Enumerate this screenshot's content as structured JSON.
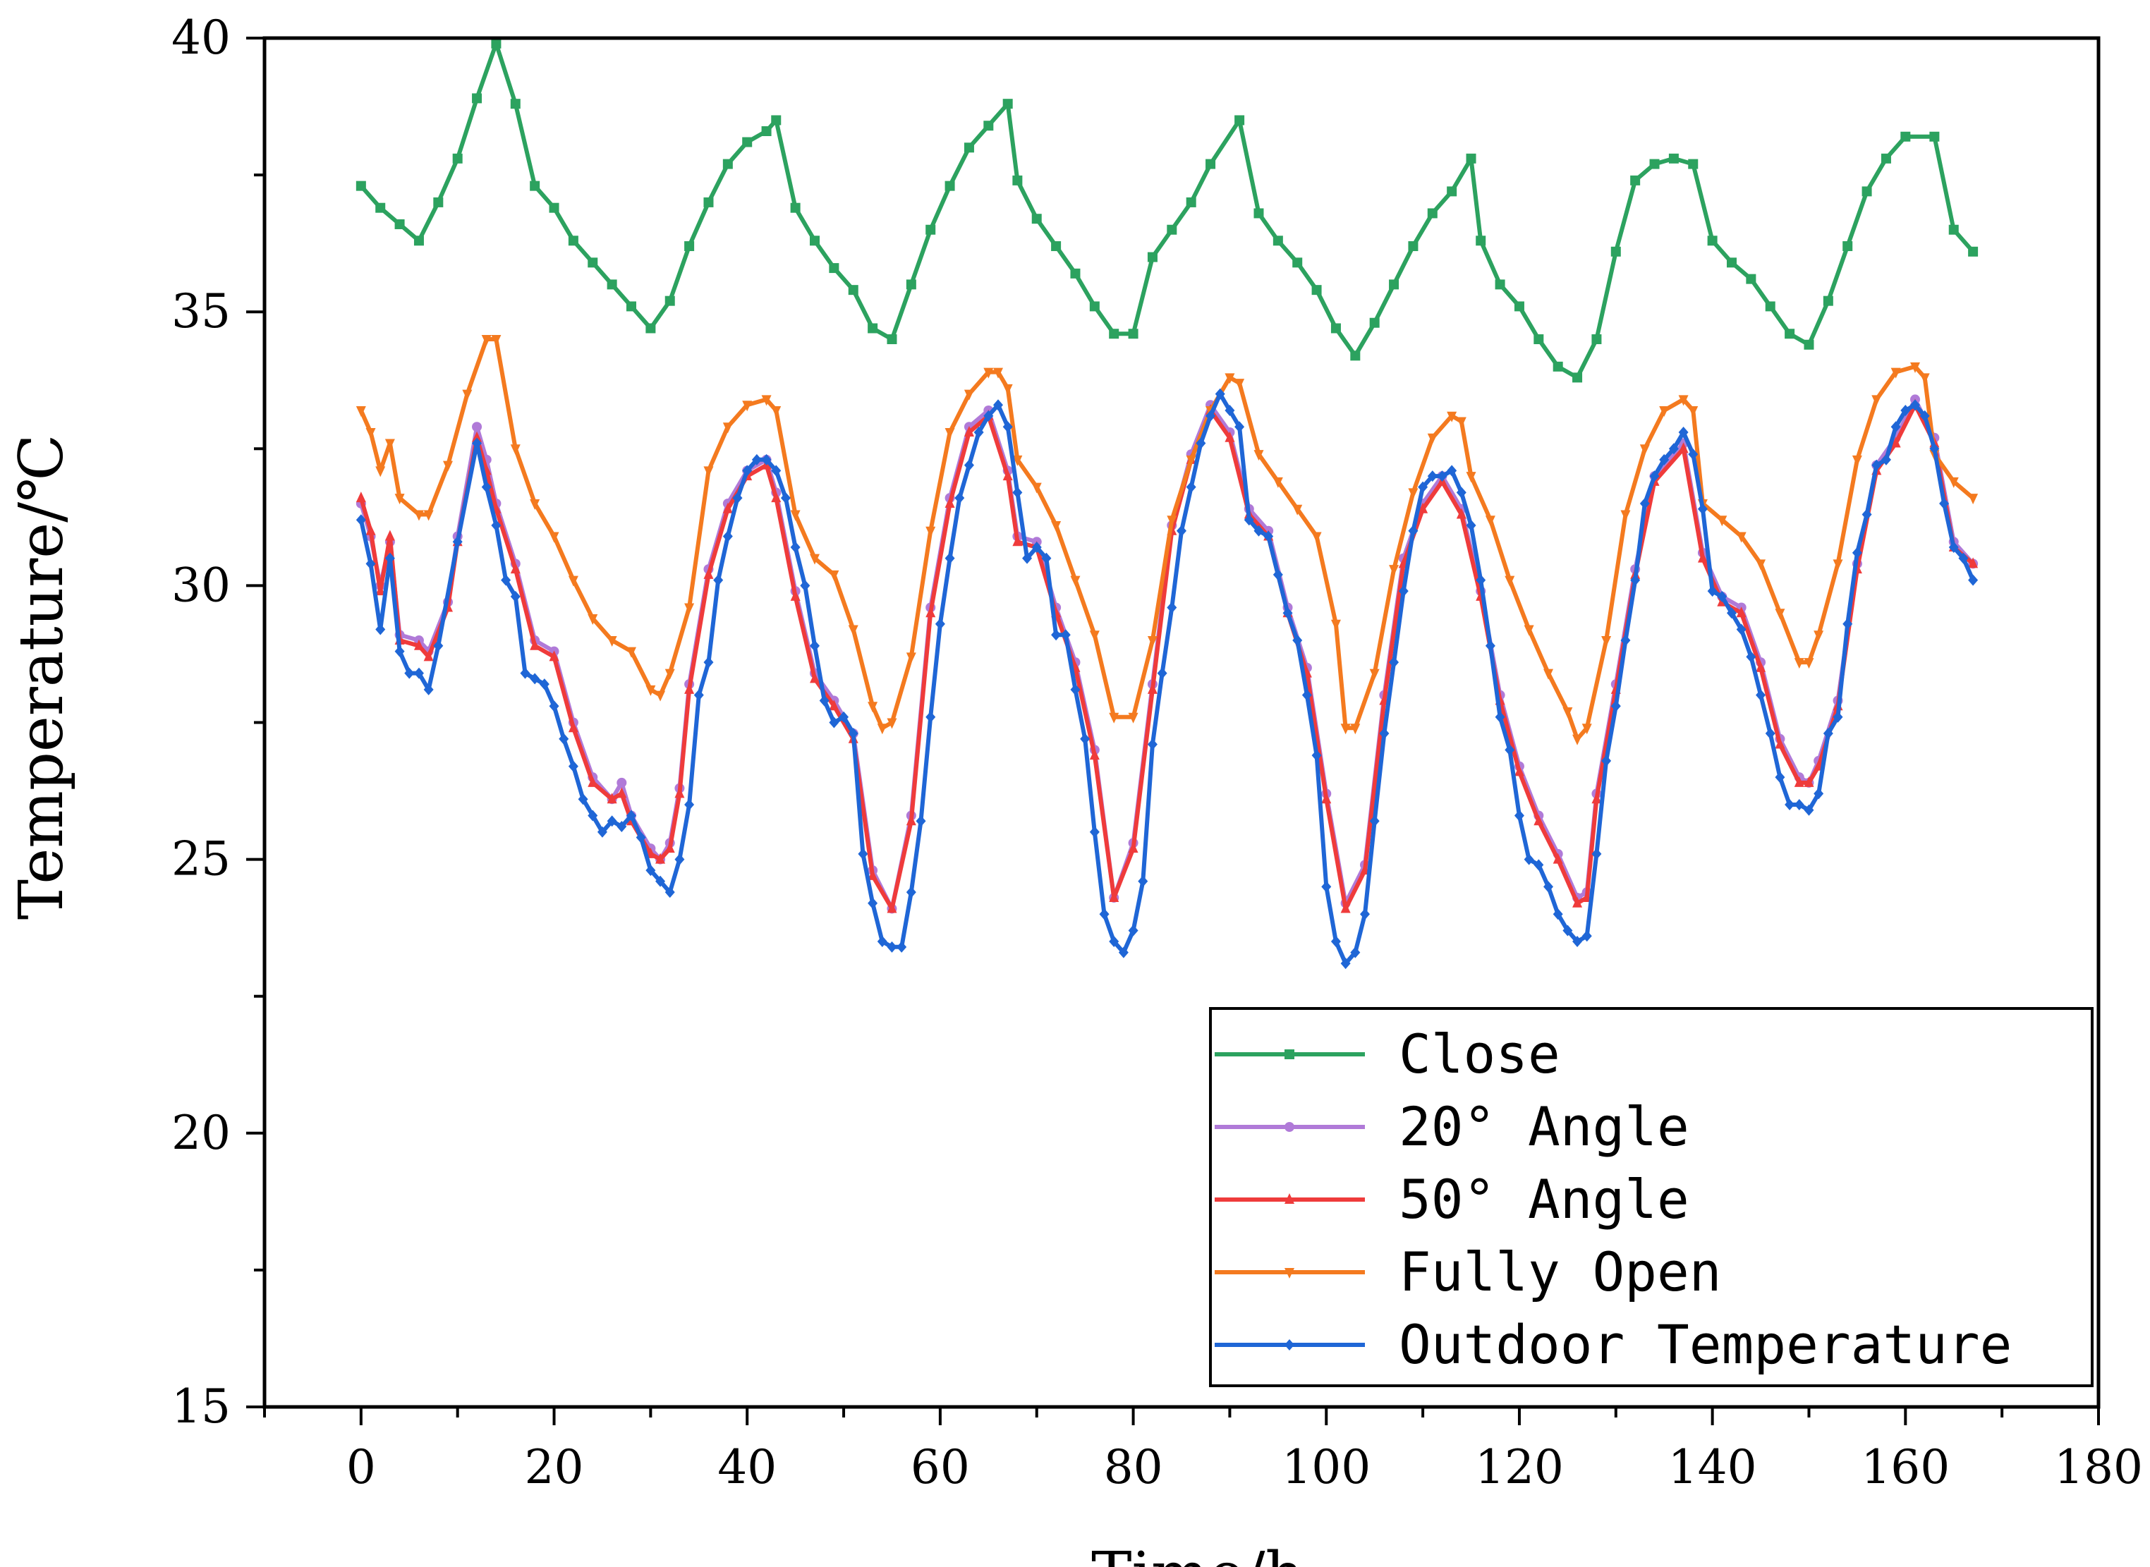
{
  "chart_data": {
    "type": "line",
    "title": "",
    "xlabel": "Time/h",
    "ylabel": "Temperature/℃",
    "xlim": [
      -10,
      180
    ],
    "ylim": [
      15,
      40
    ],
    "xticks": [
      0,
      20,
      40,
      60,
      80,
      100,
      120,
      140,
      160,
      180
    ],
    "yticks": [
      15,
      20,
      25,
      30,
      35,
      40
    ],
    "xtick_labels": [
      "0",
      "20",
      "40",
      "60",
      "80",
      "100",
      "120",
      "140",
      "160",
      "180"
    ],
    "ytick_labels": [
      "15",
      "20",
      "25",
      "30",
      "35",
      "40"
    ],
    "legend_position": "bottom-right",
    "grid": false,
    "series": [
      {
        "name": "Close",
        "color": "#2ca25f",
        "marker": "square",
        "x": [
          0,
          2,
          4,
          6,
          8,
          10,
          12,
          14,
          16,
          18,
          20,
          22,
          24,
          26,
          28,
          30,
          32,
          34,
          36,
          38,
          40,
          42,
          43,
          45,
          47,
          49,
          51,
          53,
          55,
          57,
          59,
          61,
          63,
          65,
          67,
          68,
          70,
          72,
          74,
          76,
          78,
          80,
          82,
          84,
          86,
          88,
          91,
          93,
          95,
          97,
          99,
          101,
          103,
          105,
          107,
          109,
          111,
          113,
          115,
          116,
          118,
          120,
          122,
          124,
          126,
          128,
          130,
          132,
          134,
          136,
          138,
          140,
          142,
          144,
          146,
          148,
          150,
          152,
          154,
          156,
          158,
          160,
          163,
          165,
          167
        ],
        "y": [
          37.3,
          36.9,
          36.6,
          36.3,
          37.0,
          37.8,
          38.9,
          39.9,
          38.8,
          37.3,
          36.9,
          36.3,
          35.9,
          35.5,
          35.1,
          34.7,
          35.2,
          36.2,
          37.0,
          37.7,
          38.1,
          38.3,
          38.5,
          36.9,
          36.3,
          35.8,
          35.4,
          34.7,
          34.5,
          35.5,
          36.5,
          37.3,
          38.0,
          38.4,
          38.8,
          37.4,
          36.7,
          36.2,
          35.7,
          35.1,
          34.6,
          34.6,
          36.0,
          36.5,
          37.0,
          37.7,
          38.5,
          36.8,
          36.3,
          35.9,
          35.4,
          34.7,
          34.2,
          34.8,
          35.5,
          36.2,
          36.8,
          37.2,
          37.8,
          36.3,
          35.5,
          35.1,
          34.5,
          34.0,
          33.8,
          34.5,
          36.1,
          37.4,
          37.7,
          37.8,
          37.7,
          36.3,
          35.9,
          35.6,
          35.1,
          34.6,
          34.4,
          35.2,
          36.2,
          37.2,
          37.8,
          38.2,
          38.2,
          36.5,
          36.1
        ]
      },
      {
        "name": "20° Angle",
        "color": "#b07ad8",
        "marker": "circle",
        "x": [
          0,
          1,
          2,
          3,
          4,
          6,
          7,
          9,
          10,
          12,
          13,
          14,
          16,
          18,
          20,
          22,
          24,
          26,
          27,
          28,
          30,
          31,
          32,
          33,
          34,
          36,
          38,
          40,
          42,
          43,
          45,
          47,
          49,
          51,
          53,
          55,
          57,
          59,
          61,
          63,
          65,
          67,
          68,
          70,
          72,
          74,
          76,
          78,
          80,
          82,
          84,
          86,
          88,
          90,
          92,
          94,
          96,
          98,
          100,
          102,
          104,
          106,
          108,
          110,
          112,
          114,
          116,
          118,
          120,
          122,
          124,
          126,
          127,
          128,
          130,
          132,
          134,
          137,
          139,
          141,
          143,
          145,
          147,
          149,
          150,
          151,
          153,
          155,
          157,
          159,
          161,
          163,
          165,
          167
        ],
        "y": [
          31.5,
          30.9,
          30.0,
          30.8,
          29.1,
          29.0,
          28.8,
          29.7,
          30.9,
          32.9,
          32.3,
          31.5,
          30.4,
          29.0,
          28.8,
          27.5,
          26.5,
          26.1,
          26.4,
          25.8,
          25.2,
          25.0,
          25.3,
          26.3,
          28.2,
          30.3,
          31.5,
          32.1,
          32.3,
          31.7,
          29.9,
          28.4,
          27.9,
          27.3,
          24.8,
          24.1,
          25.8,
          29.6,
          31.6,
          32.9,
          33.2,
          32.1,
          30.9,
          30.8,
          29.6,
          28.6,
          27.0,
          24.3,
          25.3,
          28.2,
          31.1,
          32.4,
          33.3,
          32.8,
          31.4,
          31.0,
          29.6,
          28.5,
          26.2,
          24.2,
          24.9,
          28.0,
          30.5,
          31.5,
          32.0,
          31.4,
          29.9,
          28.0,
          26.7,
          25.8,
          25.1,
          24.3,
          24.4,
          26.2,
          28.2,
          30.3,
          32.0,
          32.6,
          30.6,
          29.8,
          29.6,
          28.6,
          27.2,
          26.5,
          26.4,
          26.8,
          27.9,
          30.4,
          32.2,
          32.7,
          33.4,
          32.7,
          30.8,
          30.4
        ]
      },
      {
        "name": "50° Angle",
        "color": "#ef3b3b",
        "marker": "triangle-up",
        "x": [
          0,
          1,
          2,
          3,
          4,
          6,
          7,
          9,
          10,
          12,
          13,
          14,
          16,
          18,
          20,
          22,
          24,
          26,
          27,
          28,
          30,
          31,
          32,
          33,
          34,
          36,
          38,
          40,
          42,
          43,
          45,
          47,
          49,
          51,
          53,
          55,
          57,
          59,
          61,
          63,
          65,
          67,
          68,
          70,
          72,
          74,
          76,
          78,
          80,
          82,
          84,
          86,
          88,
          90,
          92,
          94,
          96,
          98,
          100,
          102,
          104,
          106,
          108,
          110,
          112,
          114,
          116,
          118,
          120,
          122,
          124,
          126,
          127,
          128,
          130,
          132,
          134,
          137,
          139,
          141,
          143,
          145,
          147,
          149,
          150,
          151,
          153,
          155,
          157,
          159,
          161,
          163,
          165,
          167
        ],
        "y": [
          31.6,
          31.0,
          29.9,
          30.9,
          29.0,
          28.9,
          28.7,
          29.6,
          30.8,
          32.7,
          32.1,
          31.4,
          30.3,
          28.9,
          28.7,
          27.4,
          26.4,
          26.1,
          26.2,
          25.7,
          25.1,
          25.0,
          25.2,
          26.2,
          28.1,
          30.2,
          31.4,
          32.0,
          32.2,
          31.6,
          29.8,
          28.3,
          27.8,
          27.2,
          24.7,
          24.1,
          25.7,
          29.5,
          31.5,
          32.8,
          33.1,
          32.0,
          30.8,
          30.7,
          29.5,
          28.5,
          26.9,
          24.3,
          25.2,
          28.1,
          31.0,
          32.3,
          33.2,
          32.7,
          31.3,
          30.9,
          29.5,
          28.4,
          26.1,
          24.1,
          24.8,
          27.9,
          30.4,
          31.4,
          31.9,
          31.3,
          29.8,
          27.9,
          26.6,
          25.7,
          25.0,
          24.2,
          24.3,
          26.1,
          28.1,
          30.2,
          31.9,
          32.5,
          30.5,
          29.7,
          29.5,
          28.5,
          27.1,
          26.4,
          26.4,
          26.7,
          27.8,
          30.3,
          32.1,
          32.6,
          33.3,
          32.6,
          30.7,
          30.4
        ]
      },
      {
        "name": "Fully Open",
        "color": "#f47a1f",
        "marker": "triangle-down",
        "x": [
          0,
          1,
          2,
          3,
          4,
          6,
          7,
          9,
          11,
          13,
          14,
          16,
          18,
          20,
          22,
          24,
          26,
          28,
          30,
          31,
          32,
          34,
          36,
          38,
          40,
          42,
          43,
          45,
          47,
          49,
          51,
          53,
          54,
          55,
          57,
          59,
          61,
          63,
          65,
          66,
          67,
          68,
          70,
          72,
          74,
          76,
          78,
          80,
          82,
          84,
          86,
          88,
          90,
          91,
          93,
          95,
          97,
          99,
          101,
          102,
          103,
          105,
          107,
          109,
          111,
          113,
          114,
          115,
          117,
          119,
          121,
          123,
          125,
          126,
          127,
          129,
          131,
          133,
          135,
          137,
          138,
          139,
          141,
          143,
          145,
          147,
          149,
          150,
          151,
          153,
          155,
          157,
          159,
          161,
          162,
          163,
          165,
          167
        ],
        "y": [
          33.2,
          32.8,
          32.1,
          32.6,
          31.6,
          31.3,
          31.3,
          32.2,
          33.5,
          34.5,
          34.5,
          32.5,
          31.5,
          30.9,
          30.1,
          29.4,
          29.0,
          28.8,
          28.1,
          28.0,
          28.4,
          29.6,
          32.1,
          32.9,
          33.3,
          33.4,
          33.2,
          31.3,
          30.5,
          30.2,
          29.2,
          27.8,
          27.4,
          27.5,
          28.7,
          31.0,
          32.8,
          33.5,
          33.9,
          33.9,
          33.6,
          32.3,
          31.8,
          31.1,
          30.1,
          29.1,
          27.6,
          27.6,
          29.0,
          31.2,
          32.3,
          33.2,
          33.8,
          33.7,
          32.4,
          31.9,
          31.4,
          30.9,
          29.3,
          27.4,
          27.4,
          28.4,
          30.3,
          31.7,
          32.7,
          33.1,
          33.0,
          32.0,
          31.2,
          30.1,
          29.2,
          28.4,
          27.7,
          27.2,
          27.4,
          29.0,
          31.3,
          32.5,
          33.2,
          33.4,
          33.2,
          31.5,
          31.2,
          30.9,
          30.4,
          29.5,
          28.6,
          28.6,
          29.1,
          30.4,
          32.3,
          33.4,
          33.9,
          34.0,
          33.8,
          32.4,
          31.9,
          31.6
        ]
      },
      {
        "name": "Outdoor Temperature",
        "color": "#1f66d6",
        "marker": "diamond",
        "x": [
          0,
          1,
          2,
          3,
          4,
          5,
          6,
          7,
          8,
          10,
          12,
          13,
          14,
          15,
          16,
          17,
          18,
          19,
          20,
          21,
          22,
          23,
          24,
          25,
          26,
          27,
          28,
          29,
          30,
          31,
          32,
          33,
          34,
          35,
          36,
          37,
          38,
          39,
          40,
          41,
          42,
          43,
          44,
          45,
          46,
          47,
          48,
          49,
          50,
          51,
          52,
          53,
          54,
          55,
          56,
          57,
          58,
          59,
          60,
          61,
          62,
          63,
          64,
          65,
          66,
          67,
          68,
          69,
          70,
          71,
          72,
          73,
          74,
          75,
          76,
          77,
          78,
          79,
          80,
          81,
          82,
          83,
          84,
          85,
          86,
          87,
          88,
          89,
          90,
          91,
          92,
          93,
          94,
          95,
          96,
          97,
          98,
          99,
          100,
          101,
          102,
          103,
          104,
          105,
          106,
          107,
          108,
          109,
          110,
          111,
          112,
          113,
          114,
          115,
          116,
          117,
          118,
          119,
          120,
          121,
          122,
          123,
          124,
          125,
          126,
          127,
          128,
          129,
          130,
          131,
          132,
          133,
          134,
          135,
          136,
          137,
          138,
          139,
          140,
          141,
          142,
          143,
          144,
          145,
          146,
          147,
          148,
          149,
          150,
          151,
          152,
          153,
          154,
          155,
          156,
          157,
          158,
          159,
          160,
          161,
          162,
          163,
          164,
          165,
          166,
          167
        ],
        "y": [
          31.2,
          30.4,
          29.2,
          30.5,
          28.8,
          28.4,
          28.4,
          28.1,
          28.9,
          30.8,
          32.6,
          31.8,
          31.1,
          30.1,
          29.8,
          28.4,
          28.3,
          28.2,
          27.8,
          27.2,
          26.7,
          26.1,
          25.8,
          25.5,
          25.7,
          25.6,
          25.8,
          25.4,
          24.8,
          24.6,
          24.4,
          25.0,
          26.0,
          28.0,
          28.6,
          30.1,
          30.9,
          31.6,
          32.1,
          32.3,
          32.3,
          32.1,
          31.6,
          30.7,
          30.0,
          28.9,
          27.9,
          27.5,
          27.6,
          27.3,
          25.1,
          24.2,
          23.5,
          23.4,
          23.4,
          24.4,
          25.7,
          27.6,
          29.3,
          30.5,
          31.6,
          32.2,
          32.8,
          33.1,
          33.3,
          32.9,
          31.7,
          30.5,
          30.7,
          30.5,
          29.1,
          29.1,
          28.1,
          27.2,
          25.5,
          24.0,
          23.5,
          23.3,
          23.7,
          24.6,
          27.1,
          28.4,
          29.6,
          31.0,
          31.8,
          32.6,
          33.1,
          33.5,
          33.2,
          32.9,
          31.2,
          31.0,
          30.9,
          30.2,
          29.5,
          29.0,
          28.0,
          26.9,
          24.5,
          23.5,
          23.1,
          23.3,
          24.0,
          25.7,
          27.3,
          28.6,
          29.9,
          31.0,
          31.8,
          32.0,
          32.0,
          32.1,
          31.7,
          31.1,
          30.1,
          28.9,
          27.6,
          27.0,
          25.8,
          25.0,
          24.9,
          24.5,
          24.0,
          23.7,
          23.5,
          23.6,
          25.1,
          26.8,
          27.8,
          29.0,
          30.1,
          31.5,
          32.0,
          32.3,
          32.5,
          32.8,
          32.4,
          31.4,
          29.9,
          29.8,
          29.5,
          29.2,
          28.7,
          28.0,
          27.3,
          26.5,
          26.0,
          26.0,
          25.9,
          26.2,
          27.3,
          27.6,
          29.3,
          30.6,
          31.3,
          32.2,
          32.3,
          32.9,
          33.2,
          33.3,
          33.1,
          32.5,
          31.5,
          30.7,
          30.5,
          30.1
        ]
      }
    ]
  }
}
